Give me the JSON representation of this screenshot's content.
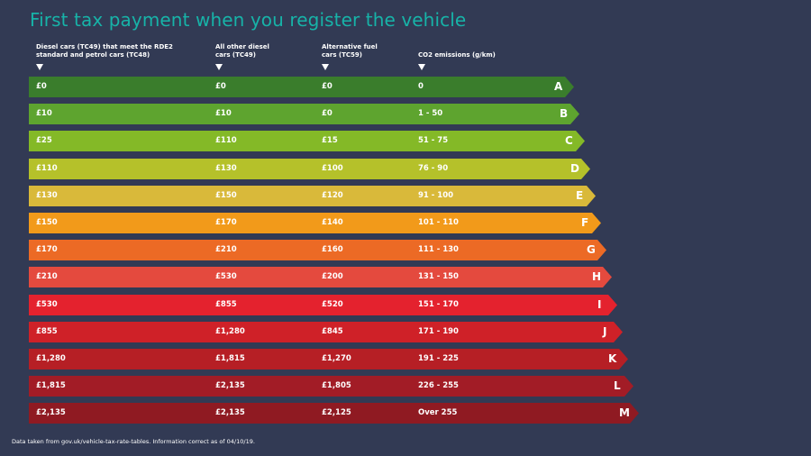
{
  "title": "First tax payment when you register the vehicle",
  "columns": [
    {
      "label": "Diesel cars (TC49) that meet the RDE2 standard and petrol cars (TC48)",
      "lines": [
        "Diesel cars (TC49) that meet the RDE2",
        "standard and petrol cars (TC48)"
      ]
    },
    {
      "label": "All other diesel cars (TC49)",
      "lines": [
        "All other diesel",
        "cars (TC49)"
      ]
    },
    {
      "label": "Alternative fuel cars (TC59)",
      "lines": [
        "Alternative fuel",
        "cars (TC59)"
      ]
    },
    {
      "label": "CO2 emissions (g/km)",
      "lines": [
        "",
        "CO2 emissions (g/km)"
      ]
    }
  ],
  "bands": [
    {
      "letter": "A",
      "diesel_rde2_petrol": "£0",
      "other_diesel": "£0",
      "alt_fuel": "£0",
      "co2": "0",
      "color": "#3a7d2c"
    },
    {
      "letter": "B",
      "diesel_rde2_petrol": "£10",
      "other_diesel": "£10",
      "alt_fuel": "£0",
      "co2": "1 - 50",
      "color": "#5ea42f"
    },
    {
      "letter": "C",
      "diesel_rde2_petrol": "£25",
      "other_diesel": "£110",
      "alt_fuel": "£15",
      "co2": "51 - 75",
      "color": "#84b927"
    },
    {
      "letter": "D",
      "diesel_rde2_petrol": "£110",
      "other_diesel": "£130",
      "alt_fuel": "£100",
      "co2": "76 - 90",
      "color": "#b5c12a"
    },
    {
      "letter": "E",
      "diesel_rde2_petrol": "£130",
      "other_diesel": "£150",
      "alt_fuel": "£120",
      "co2": "91 - 100",
      "color": "#d9b93a"
    },
    {
      "letter": "F",
      "diesel_rde2_petrol": "£150",
      "other_diesel": "£170",
      "alt_fuel": "£140",
      "co2": "101 - 110",
      "color": "#f29a1a"
    },
    {
      "letter": "G",
      "diesel_rde2_petrol": "£170",
      "other_diesel": "£210",
      "alt_fuel": "£160",
      "co2": "111 - 130",
      "color": "#ec6a25"
    },
    {
      "letter": "H",
      "diesel_rde2_petrol": "£210",
      "other_diesel": "£530",
      "alt_fuel": "£200",
      "co2": "131 - 150",
      "color": "#e44a3e"
    },
    {
      "letter": "I",
      "diesel_rde2_petrol": "£530",
      "other_diesel": "£855",
      "alt_fuel": "£520",
      "co2": "151 - 170",
      "color": "#e4222e"
    },
    {
      "letter": "J",
      "diesel_rde2_petrol": "£855",
      "other_diesel": "£1,280",
      "alt_fuel": "£845",
      "co2": "171 - 190",
      "color": "#cf2128"
    },
    {
      "letter": "K",
      "diesel_rde2_petrol": "£1,280",
      "other_diesel": "£1,815",
      "alt_fuel": "£1,270",
      "co2": "191 - 225",
      "color": "#b61f25"
    },
    {
      "letter": "L",
      "diesel_rde2_petrol": "£1,815",
      "other_diesel": "£2,135",
      "alt_fuel": "£1,805",
      "co2": "226 - 255",
      "color": "#a21c26"
    },
    {
      "letter": "M",
      "diesel_rde2_petrol": "£2,135",
      "other_diesel": "£2,135",
      "alt_fuel": "£2,125",
      "co2": "Over 255",
      "color": "#8f1a22"
    }
  ],
  "footer": "Data taken from gov.uk/vehicle-tax-rate-tables. Information correct as of 04/10/19."
}
